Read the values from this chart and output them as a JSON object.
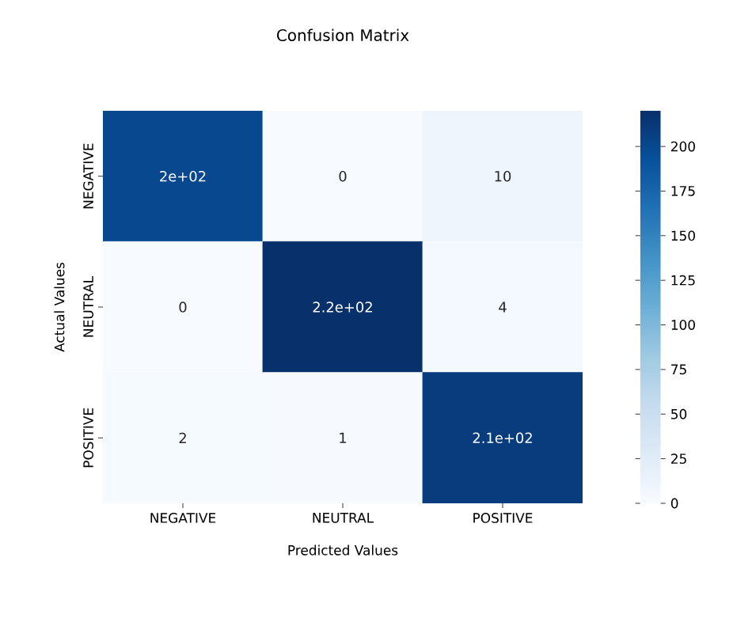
{
  "chart_data": {
    "type": "heatmap",
    "title": "Confusion Matrix",
    "xlabel": "Predicted Values",
    "ylabel": "Actual Values",
    "categories": [
      "NEGATIVE",
      "NEUTRAL",
      "POSITIVE"
    ],
    "y_categories": [
      "NEGATIVE",
      "NEUTRAL",
      "POSITIVE"
    ],
    "cells": [
      [
        200,
        0,
        10
      ],
      [
        0,
        220,
        4
      ],
      [
        2,
        1,
        210
      ]
    ],
    "cell_labels": [
      [
        "2e+02",
        "0",
        "10"
      ],
      [
        "0",
        "2.2e+02",
        "4"
      ],
      [
        "2",
        "1",
        "2.1e+02"
      ]
    ],
    "clim": [
      0,
      220
    ],
    "cticks": [
      0,
      25,
      50,
      75,
      100,
      125,
      150,
      175,
      200
    ]
  }
}
